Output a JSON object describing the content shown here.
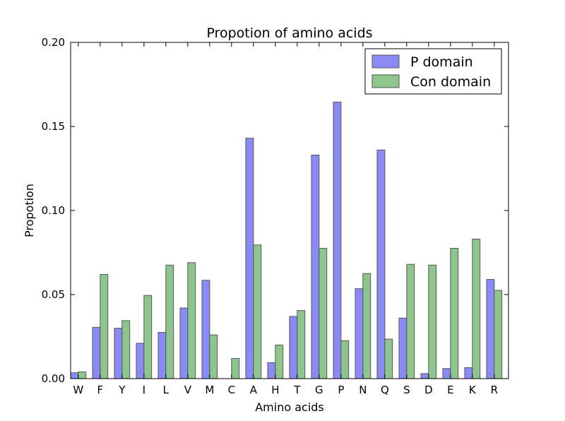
{
  "chart_data": {
    "type": "bar",
    "title": "Propotion of amino acids",
    "xlabel": "Amino acids",
    "ylabel": "Propotion",
    "ylim": [
      0,
      0.2
    ],
    "yticks": [
      "0.00",
      "0.05",
      "0.10",
      "0.15",
      "0.20"
    ],
    "grid": false,
    "legend_position": "top-right",
    "categories": [
      "W",
      "F",
      "Y",
      "I",
      "L",
      "V",
      "M",
      "C",
      "A",
      "H",
      "T",
      "G",
      "P",
      "N",
      "Q",
      "S",
      "D",
      "E",
      "K",
      "R"
    ],
    "series": [
      {
        "name": "P domain",
        "color": "#8a8af5",
        "values": [
          0.0035,
          0.0305,
          0.03,
          0.021,
          0.0275,
          0.042,
          0.0585,
          0.0,
          0.143,
          0.0095,
          0.037,
          0.133,
          0.1645,
          0.0535,
          0.136,
          0.036,
          0.003,
          0.006,
          0.0065,
          0.059
        ]
      },
      {
        "name": "Con domain",
        "color": "#8dc58d",
        "values": [
          0.004,
          0.062,
          0.0345,
          0.0495,
          0.0675,
          0.069,
          0.026,
          0.012,
          0.0795,
          0.02,
          0.0405,
          0.0775,
          0.0225,
          0.0625,
          0.0235,
          0.068,
          0.0675,
          0.0775,
          0.083,
          0.0525
        ]
      }
    ]
  }
}
